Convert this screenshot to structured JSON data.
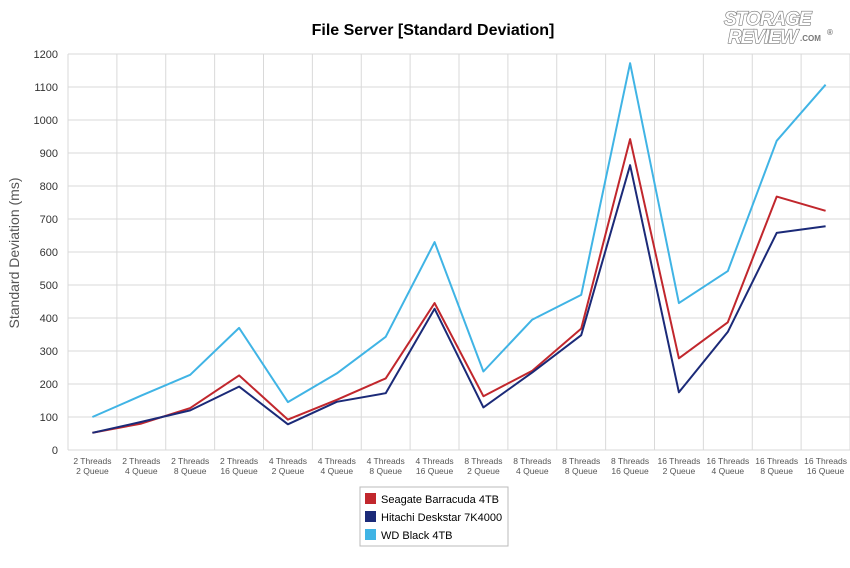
{
  "logo": {
    "line1": "STORAGE",
    "line2": "REVIEW",
    "suffix": ".COM",
    "reg": "®"
  },
  "chart_data": {
    "type": "line",
    "title": "File Server [Standard Deviation]",
    "ylabel": "Standard Deviation (ms)",
    "xlabel": "",
    "ylim": [
      0,
      1200
    ],
    "yticks": [
      0,
      100,
      200,
      300,
      400,
      500,
      600,
      700,
      800,
      900,
      1000,
      1100,
      1200
    ],
    "grid": true,
    "legend_position": "bottom-center",
    "categories": [
      [
        "2 Threads",
        "2 Queue"
      ],
      [
        "2 Threads",
        "4 Queue"
      ],
      [
        "2 Threads",
        "8 Queue"
      ],
      [
        "2 Threads",
        "16 Queue"
      ],
      [
        "4 Threads",
        "2 Queue"
      ],
      [
        "4 Threads",
        "4 Queue"
      ],
      [
        "4 Threads",
        "8 Queue"
      ],
      [
        "4 Threads",
        "16 Queue"
      ],
      [
        "8 Threads",
        "2 Queue"
      ],
      [
        "8 Threads",
        "4 Queue"
      ],
      [
        "8 Threads",
        "8 Queue"
      ],
      [
        "8 Threads",
        "16 Queue"
      ],
      [
        "16 Threads",
        "2 Queue"
      ],
      [
        "16 Threads",
        "4 Queue"
      ],
      [
        "16 Threads",
        "8 Queue"
      ],
      [
        "16 Threads",
        "16 Queue"
      ]
    ],
    "series": [
      {
        "name": "Seagate Barracuda 4TB",
        "color": "#c1272d",
        "values": [
          52,
          80,
          127,
          226,
          92,
          152,
          217,
          445,
          163,
          240,
          368,
          942,
          278,
          387,
          768,
          725
        ]
      },
      {
        "name": "Hitachi Deskstar 7K4000",
        "color": "#1b2a78",
        "values": [
          52,
          85,
          120,
          192,
          78,
          146,
          172,
          428,
          129,
          235,
          348,
          863,
          175,
          358,
          658,
          678
        ]
      },
      {
        "name": "WD Black 4TB",
        "color": "#40b4e5",
        "values": [
          100,
          165,
          228,
          370,
          145,
          232,
          343,
          630,
          238,
          395,
          470,
          1172,
          445,
          542,
          937,
          1107
        ]
      }
    ]
  }
}
